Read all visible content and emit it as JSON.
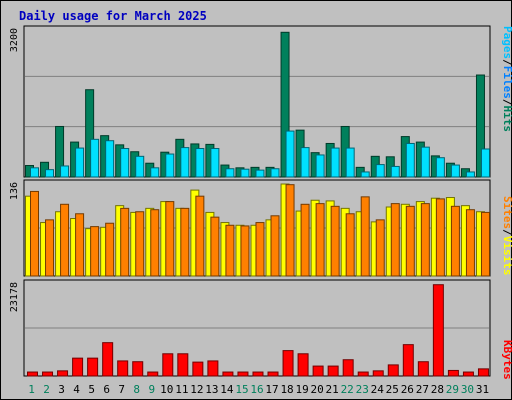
{
  "title": "Daily usage for March 2025",
  "colors": {
    "hits": "#00805c",
    "files": "#00e0ff",
    "pages": "#00c0ff",
    "visits": "#ffff00",
    "sites": "#ff8000",
    "kbytes": "#ff0000",
    "weekend_day": "#00805c",
    "weekday": "#000000"
  },
  "legend": {
    "top": [
      {
        "text": "Pages",
        "color": "#00c0ff"
      },
      {
        "text": "/",
        "color": "#000000"
      },
      {
        "text": "Files",
        "color": "#0080ff"
      },
      {
        "text": "/",
        "color": "#000000"
      },
      {
        "text": "Hits",
        "color": "#00805c"
      }
    ],
    "middle": [
      {
        "text": "Sites",
        "color": "#ff8000"
      },
      {
        "text": "/",
        "color": "#000000"
      },
      {
        "text": "Visits",
        "color": "#ffff00"
      }
    ],
    "bottom": [
      {
        "text": "KBytes",
        "color": "#ff0000"
      }
    ]
  },
  "chart_data": {
    "type": "bar",
    "title": "Daily usage for March 2025",
    "categories": [
      "1",
      "2",
      "3",
      "4",
      "5",
      "6",
      "7",
      "8",
      "9",
      "10",
      "11",
      "12",
      "13",
      "14",
      "15",
      "16",
      "17",
      "18",
      "19",
      "20",
      "21",
      "22",
      "23",
      "24",
      "25",
      "26",
      "27",
      "28",
      "29",
      "30",
      "31"
    ],
    "weekend_days": [
      "1",
      "2",
      "8",
      "9",
      "15",
      "16",
      "22",
      "23",
      "29",
      "30"
    ],
    "panels": [
      {
        "name": "top",
        "ymax_label": "3200",
        "ylim": [
          0,
          3200
        ],
        "series": [
          {
            "name": "Hits",
            "values": [
              250,
              320,
              1100,
              760,
              1900,
              900,
              700,
              550,
              300,
              540,
              820,
              720,
              710,
              260,
              200,
              210,
              210,
              3150,
              1020,
              530,
              730,
              1100,
              210,
              450,
              440,
              880,
              760,
              460,
              300,
              180,
              2220
            ]
          },
          {
            "name": "Files",
            "values": [
              200,
              160,
              240,
              630,
              820,
              790,
              620,
              450,
              200,
              500,
              640,
              620,
              620,
              180,
              170,
              150,
              180,
              1000,
              640,
              480,
              630,
              630,
              110,
              270,
              230,
              730,
              650,
              420,
              260,
              110,
              610
            ]
          }
        ]
      },
      {
        "name": "middle",
        "ymax_label": "136",
        "ylim": [
          0,
          136
        ],
        "series": [
          {
            "name": "Visits",
            "values": [
              118,
              79,
              95,
              85,
              70,
              72,
              104,
              94,
              100,
              110,
              100,
              127,
              94,
              79,
              75,
              75,
              83,
              136,
              96,
              112,
              111,
              100,
              95,
              80,
              102,
              106,
              110,
              115,
              116,
              104,
              95
            ]
          },
          {
            "name": "Sites",
            "values": [
              125,
              83,
              106,
              92,
              73,
              78,
              100,
              95,
              98,
              110,
              100,
              118,
              87,
              75,
              74,
              79,
              89,
              135,
              106,
              107,
              103,
              92,
              117,
              83,
              107,
              103,
              107,
              114,
              103,
              98,
              94
            ]
          }
        ]
      },
      {
        "name": "bottom",
        "ymax_label": "23178",
        "ylim": [
          0,
          23178
        ],
        "series": [
          {
            "name": "KBytes",
            "values": [
              1000,
              1000,
              1300,
              4500,
              4500,
              8400,
              3800,
              3600,
              1000,
              5600,
              5600,
              3500,
              3800,
              1000,
              1000,
              1000,
              1000,
              6400,
              5600,
              2500,
              2500,
              4100,
              1000,
              1300,
              2800,
              7900,
              3600,
              23000,
              1400,
              1000,
              1800
            ]
          }
        ]
      }
    ]
  }
}
